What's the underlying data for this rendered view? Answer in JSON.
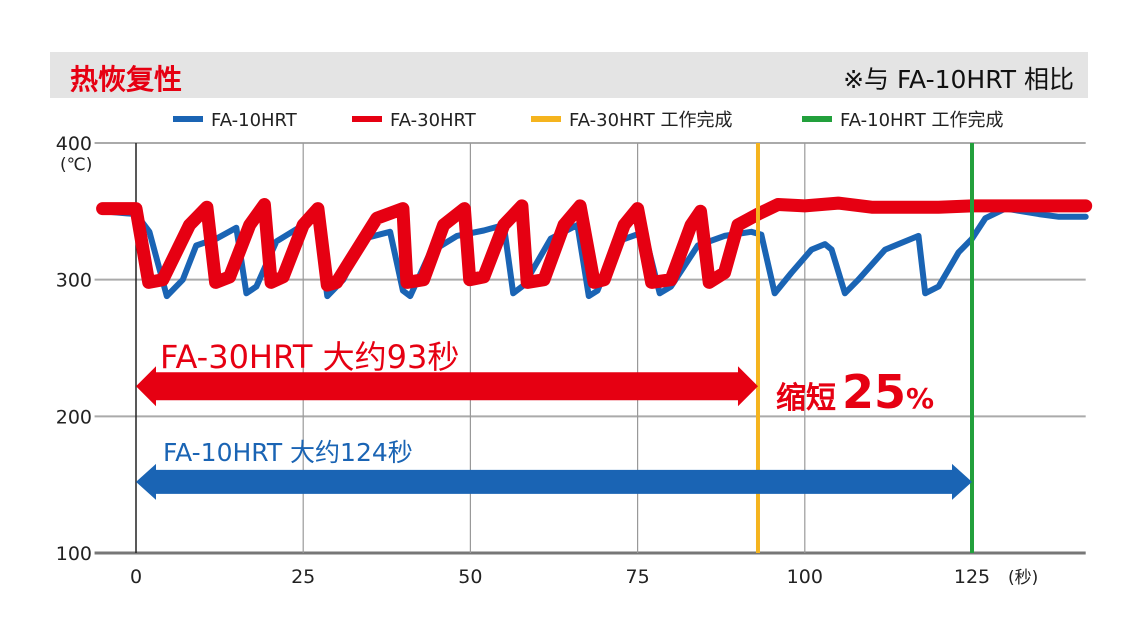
{
  "header": {
    "title": "热恢复性",
    "note": "※与 FA-10HRT 相比"
  },
  "chart_data": {
    "type": "line",
    "title": "热恢复性",
    "ylabel": "(℃)",
    "xlabel": "(秒)",
    "xlim": [
      -5,
      142
    ],
    "ylim": [
      100,
      400
    ],
    "xticks": [
      0,
      25,
      50,
      75,
      100,
      125
    ],
    "yticks": [
      100,
      200,
      300,
      400
    ],
    "grid": true,
    "legend_position": "top",
    "series": [
      {
        "name": "FA-10HRT",
        "color": "#1a64b4",
        "points": [
          [
            -5,
            350
          ],
          [
            0,
            348
          ],
          [
            2,
            335
          ],
          [
            4.6,
            288
          ],
          [
            7,
            300
          ],
          [
            9,
            325
          ],
          [
            12,
            330
          ],
          [
            15,
            338
          ],
          [
            16.5,
            290
          ],
          [
            18,
            295
          ],
          [
            21,
            328
          ],
          [
            25,
            340
          ],
          [
            27,
            345
          ],
          [
            28.6,
            288
          ],
          [
            31,
            300
          ],
          [
            34,
            330
          ],
          [
            38,
            335
          ],
          [
            39.9,
            292
          ],
          [
            41,
            288
          ],
          [
            44,
            320
          ],
          [
            48,
            332
          ],
          [
            52,
            336
          ],
          [
            55,
            340
          ],
          [
            56.4,
            290
          ],
          [
            58,
            296
          ],
          [
            62,
            330
          ],
          [
            66,
            340
          ],
          [
            67.7,
            288
          ],
          [
            69,
            292
          ],
          [
            72,
            328
          ],
          [
            76,
            335
          ],
          [
            78.3,
            290
          ],
          [
            80,
            295
          ],
          [
            84,
            325
          ],
          [
            88,
            332
          ],
          [
            92,
            335
          ],
          [
            93.5,
            333
          ],
          [
            95.5,
            290
          ],
          [
            98,
            305
          ],
          [
            101,
            322
          ],
          [
            103,
            326
          ],
          [
            104,
            322
          ],
          [
            106,
            290
          ],
          [
            108,
            300
          ],
          [
            112,
            322
          ],
          [
            117,
            332
          ],
          [
            118,
            290
          ],
          [
            120,
            295
          ],
          [
            123,
            320
          ],
          [
            125,
            330
          ],
          [
            127,
            345
          ],
          [
            130,
            352
          ],
          [
            135,
            348
          ],
          [
            138,
            346
          ],
          [
            142,
            346
          ]
        ]
      },
      {
        "name": "FA-30HRT",
        "color": "#e60012",
        "points": [
          [
            -5,
            352
          ],
          [
            0,
            352
          ],
          [
            1.9,
            298
          ],
          [
            4,
            300
          ],
          [
            8,
            340
          ],
          [
            10.6,
            353
          ],
          [
            11.9,
            298
          ],
          [
            14,
            302
          ],
          [
            17,
            340
          ],
          [
            19.2,
            355
          ],
          [
            20.2,
            298
          ],
          [
            22,
            302
          ],
          [
            25,
            340
          ],
          [
            27.2,
            352
          ],
          [
            28.6,
            296
          ],
          [
            30,
            298
          ],
          [
            36,
            345
          ],
          [
            39.9,
            352
          ],
          [
            40.5,
            298
          ],
          [
            43,
            300
          ],
          [
            46,
            340
          ],
          [
            49.1,
            352
          ],
          [
            49.9,
            300
          ],
          [
            52,
            302
          ],
          [
            55,
            340
          ],
          [
            57.7,
            354
          ],
          [
            58.5,
            298
          ],
          [
            61,
            300
          ],
          [
            64,
            340
          ],
          [
            66.4,
            354
          ],
          [
            68.5,
            298
          ],
          [
            70,
            300
          ],
          [
            73,
            340
          ],
          [
            75,
            352
          ],
          [
            77.1,
            298
          ],
          [
            80,
            300
          ],
          [
            83,
            340
          ],
          [
            84.4,
            350
          ],
          [
            85.7,
            298
          ],
          [
            88,
            305
          ],
          [
            90,
            340
          ],
          [
            93,
            348
          ],
          [
            96,
            355
          ],
          [
            100,
            354
          ],
          [
            105,
            356
          ],
          [
            110,
            353
          ],
          [
            120,
            353
          ],
          [
            125,
            354
          ],
          [
            130,
            354
          ],
          [
            142,
            354
          ]
        ]
      }
    ],
    "vlines": [
      {
        "name": "FA-30HRT 工作完成",
        "x": 93,
        "color": "#f5b41e"
      },
      {
        "name": "FA-10HRT 工作完成",
        "x": 125,
        "color": "#22a03c"
      }
    ],
    "annotations": {
      "red_arrow": {
        "from": 0,
        "to": 93,
        "y": 222,
        "label": "FA-30HRT  大约93秒",
        "color": "#e60012"
      },
      "blue_arrow": {
        "from": 0,
        "to": 125,
        "y": 152,
        "label": "FA-10HRT  大约124秒",
        "color": "#1a64b4"
      },
      "reduction_prefix": "缩短",
      "reduction_value": "25",
      "reduction_unit": "%"
    }
  }
}
